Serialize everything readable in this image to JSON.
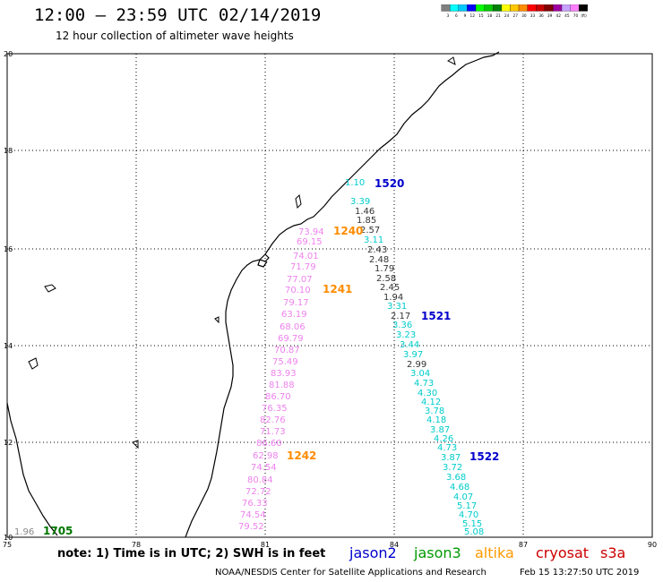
{
  "header": {
    "title": "12:00 – 23:59 UTC 02/14/2019",
    "subtitle": "12 hour collection of altimeter wave heights"
  },
  "scale": {
    "colors": [
      "#808080",
      "#00ffff",
      "#00c8ff",
      "#0000ff",
      "#00ff00",
      "#00c800",
      "#008000",
      "#ffff00",
      "#ffc800",
      "#ff8c00",
      "#ff0000",
      "#c80000",
      "#800000",
      "#a000a0",
      "#c8a0ff",
      "#ff80ff",
      "#000000"
    ],
    "labels": [
      "3",
      "6",
      "9",
      "12",
      "15",
      "18",
      "21",
      "24",
      "27",
      "30",
      "33",
      "36",
      "39",
      "42",
      "45",
      "70",
      "(ft)"
    ]
  },
  "axes": {
    "x_ticks": [
      "75",
      "78",
      "81",
      "84",
      "87",
      "90"
    ],
    "y_ticks": [
      "20",
      "18",
      "16",
      "14",
      "12",
      "10"
    ]
  },
  "passes": [
    {
      "label": "1520",
      "color": "#0000cc"
    },
    {
      "label": "1521",
      "color": "#0000cc"
    },
    {
      "label": "1522",
      "color": "#0000cc"
    },
    {
      "label": "1240",
      "color": "#ff8c00"
    },
    {
      "label": "1241",
      "color": "#ff8c00"
    },
    {
      "label": "1242",
      "color": "#ff8c00"
    },
    {
      "label": "1705",
      "color": "#007700"
    }
  ],
  "track_jason2": {
    "values": [
      "1.10",
      "3.39",
      "1.46",
      "1.85",
      "2.57",
      "3.11",
      "2.43",
      "2.48",
      "1.79",
      "2.58",
      "2.45",
      "1.94",
      "3.31",
      "2.17",
      "3.36",
      "3.23",
      "3.44",
      "3.97",
      "2.99",
      "3.04",
      "4.73",
      "4.30",
      "4.12",
      "3.78",
      "4.18",
      "3.87",
      "4.26",
      "4.73",
      "3.87",
      "3.72",
      "3.68",
      "4.68",
      "4.07",
      "5.17",
      "4.70",
      "5.15",
      "5.08"
    ]
  },
  "track_altika": {
    "values": [
      "73.94",
      "69.15",
      "74.01",
      "71.79",
      "77.07",
      "70.10",
      "79.17",
      "63.19",
      "68.06",
      "69.79",
      "70.87",
      "75.49",
      "83.93",
      "81.88",
      "86.70",
      "76.35",
      "82.76",
      "71.73",
      "86.60",
      "62.98",
      "74.54",
      "80.84",
      "72.72",
      "76.33",
      "74.54",
      "79.52"
    ]
  },
  "track_jason3": {
    "values": [
      "1.96"
    ]
  },
  "footer": {
    "note": "note: 1) Time is in UTC; 2) SWH is in feet",
    "credit": "NOAA/NESDIS Center for Satellite Applications and Research",
    "timestamp": "Feb 15 13:27:50 UTC 2019",
    "satellites": [
      {
        "name": "jason2",
        "color": "#0000cc"
      },
      {
        "name": "jason3",
        "color": "#009900"
      },
      {
        "name": "altika",
        "color": "#ff9900"
      },
      {
        "name": "cryosat",
        "color": "#cc0000"
      },
      {
        "name": "s3a",
        "color": "#cc0000"
      }
    ]
  }
}
